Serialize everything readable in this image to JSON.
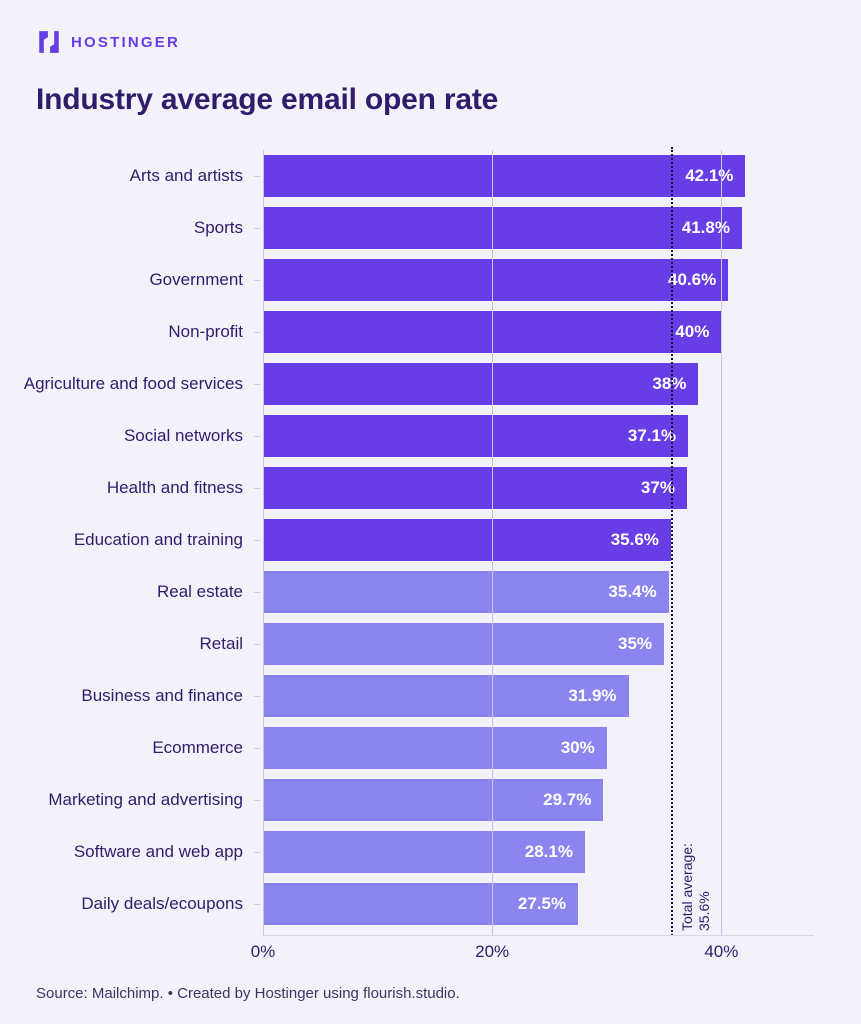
{
  "header": {
    "brand": "HOSTINGER",
    "title": "Industry average email open rate"
  },
  "chart_data": {
    "type": "bar",
    "orientation": "horizontal",
    "title": "Industry average email open rate",
    "categories": [
      "Arts and artists",
      "Sports",
      "Government",
      "Non-profit",
      "Agriculture and food services",
      "Social networks",
      "Health and fitness",
      "Education and training",
      "Real estate",
      "Retail",
      "Business and finance",
      "Ecommerce",
      "Marketing and advertising",
      "Software and web app",
      "Daily deals/ecoupons"
    ],
    "values": [
      42.1,
      41.8,
      40.6,
      40,
      38,
      37.1,
      37,
      35.6,
      35.4,
      35,
      31.9,
      30,
      29.7,
      28.1,
      27.5
    ],
    "value_labels": [
      "42.1%",
      "41.8%",
      "40.6%",
      "40%",
      "38%",
      "37.1%",
      "37%",
      "35.6%",
      "35.4%",
      "35%",
      "31.9%",
      "30%",
      "29.7%",
      "28.1%",
      "27.5%"
    ],
    "xlim": [
      0,
      48
    ],
    "x_ticks": [
      {
        "value": 0,
        "label": "0%"
      },
      {
        "value": 20,
        "label": "20%"
      },
      {
        "value": 40,
        "label": "40%"
      }
    ],
    "average": {
      "value": 35.6,
      "label_line1": "Total average:",
      "label_line2": "35.6%"
    },
    "bars_above_average_count": 8,
    "grid": "vertical gridlines at ticks, drawn over bars",
    "legend": "none"
  },
  "colors": {
    "background": "#F3F2FB",
    "bar_above_average": "#673DE6",
    "bar_below_average": "#8C85F0",
    "title_text": "#2F1C6A",
    "axis_text": "#2F1C6A",
    "value_label_text": "#FFFFFF",
    "brand_purple": "#673DE6",
    "average_line": "#1A1538",
    "gridline": "#C7C5DF"
  },
  "footer": {
    "source": "Source: Mailchimp. • Created by Hostinger using flourish.studio."
  }
}
